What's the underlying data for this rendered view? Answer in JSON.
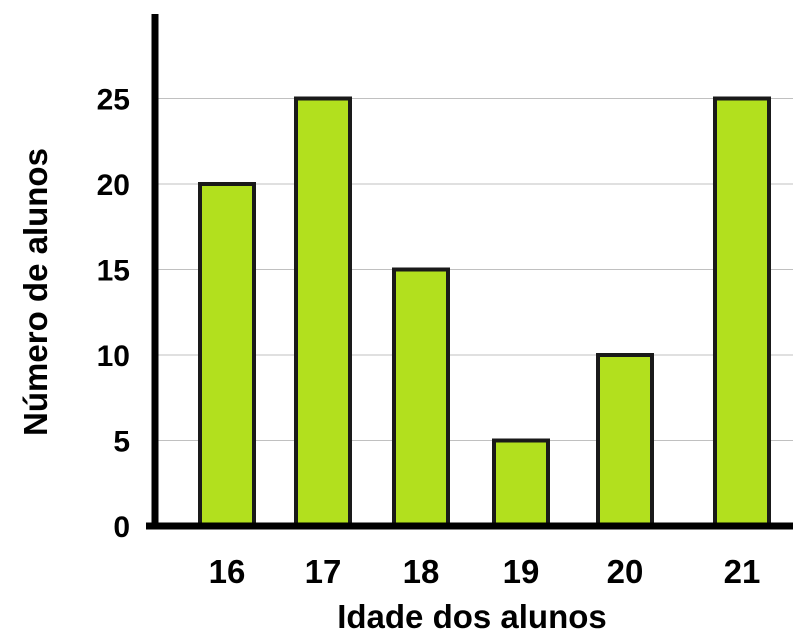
{
  "chart_data": {
    "type": "bar",
    "title": "",
    "xlabel": "Idade dos alunos",
    "ylabel": "Número de alunos",
    "categories": [
      "16",
      "17",
      "18",
      "19",
      "20",
      "21"
    ],
    "values": [
      20,
      25,
      15,
      5,
      10,
      25
    ],
    "ylim": [
      0,
      30
    ],
    "yticks": [
      "0",
      "5",
      "10",
      "15",
      "20",
      "25"
    ],
    "grid": true,
    "legend": "none",
    "colors": {
      "bar": "#b2e01e",
      "bar_outline": "#1a1a1a",
      "axis": "#000000",
      "grid": "#c0c0c0"
    }
  }
}
